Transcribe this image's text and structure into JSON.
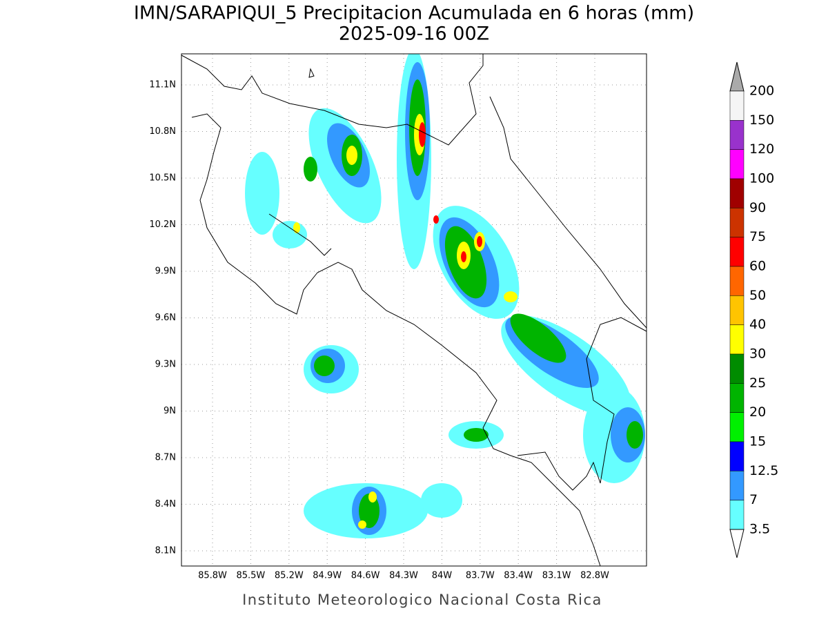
{
  "header": {
    "title": "IMN/SARAPIQUI_5 Precipitacion Acumulada en 6 horas (mm)",
    "subtitle": "2025-09-16 00Z"
  },
  "map": {
    "lon_labels": [
      "85.8W",
      "85.5W",
      "85.2W",
      "84.9W",
      "84.6W",
      "84.3W",
      "84W",
      "83.7W",
      "83.4W",
      "83.1W",
      "82.8W"
    ],
    "lat_labels": [
      "11.1N",
      "10.8N",
      "10.5N",
      "10.2N",
      "9.9N",
      "9.6N",
      "9.3N",
      "9N",
      "8.7N",
      "8.4N",
      "8.1N"
    ]
  },
  "legend": {
    "levels": [
      200,
      150,
      120,
      100,
      90,
      75,
      60,
      50,
      40,
      30,
      25,
      20,
      15,
      12.5,
      7,
      3.5
    ],
    "colors": [
      "#f5f5f5",
      "#9932cc",
      "#ff00ff",
      "#a00000",
      "#cc3300",
      "#ff0000",
      "#ff6600",
      "#ffc400",
      "#ffff00",
      "#008c00",
      "#00b400",
      "#00f000",
      "#0000ff",
      "#3399ff",
      "#66ffff"
    ],
    "over_color": "#aaaaaa",
    "under_color": "#ffffff"
  },
  "footer": "Instituto Meteorologico Nacional Costa Rica"
}
